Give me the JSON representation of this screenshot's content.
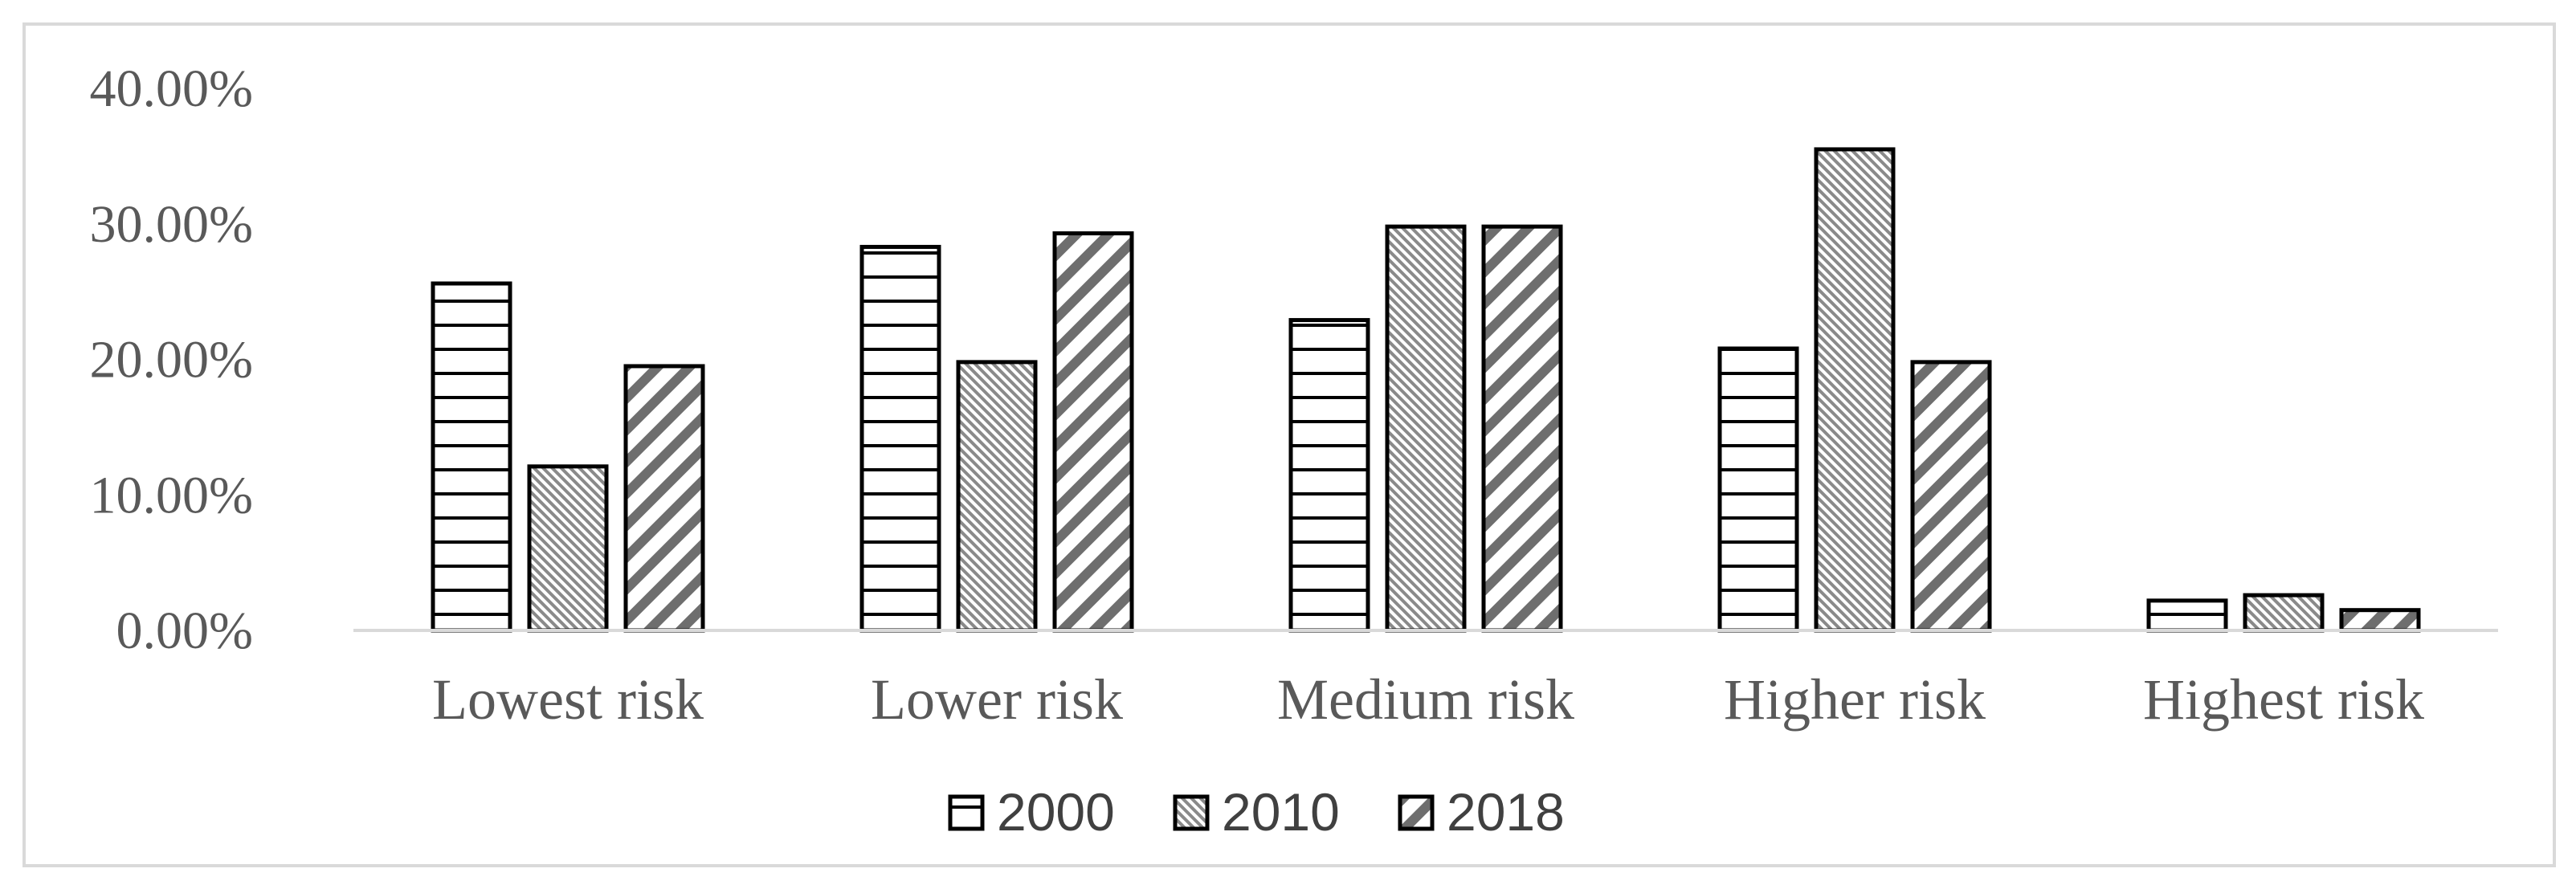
{
  "chart_data": {
    "type": "bar",
    "title": "",
    "xlabel": "",
    "ylabel": "",
    "categories": [
      "Lowest risk",
      "Lower risk",
      "Medium risk",
      "Higher risk",
      "Highest risk"
    ],
    "series": [
      {
        "name": "2000",
        "values": [
          25.6,
          28.3,
          22.9,
          20.8,
          2.2
        ],
        "pattern": "horizontal-lines"
      },
      {
        "name": "2010",
        "values": [
          12.1,
          19.8,
          29.8,
          35.5,
          2.6
        ],
        "pattern": "dense-diagonal"
      },
      {
        "name": "2018",
        "values": [
          19.5,
          29.3,
          29.8,
          19.8,
          1.5
        ],
        "pattern": "bold-diagonal"
      }
    ],
    "ylim": [
      0,
      40
    ],
    "yticks": [
      0,
      10,
      20,
      30,
      40
    ],
    "ytick_labels": [
      "0.00%",
      "10.00%",
      "20.00%",
      "30.00%",
      "40.00%"
    ],
    "grid": false,
    "legend_position": "bottom-center",
    "colors": {
      "bar_outline": "#000000",
      "pattern_stroke": "#000000",
      "pattern_gray": "#7a7a7a",
      "axis": "#d9d9d9",
      "frame": "#d9d9d9",
      "text": "#595959"
    }
  }
}
